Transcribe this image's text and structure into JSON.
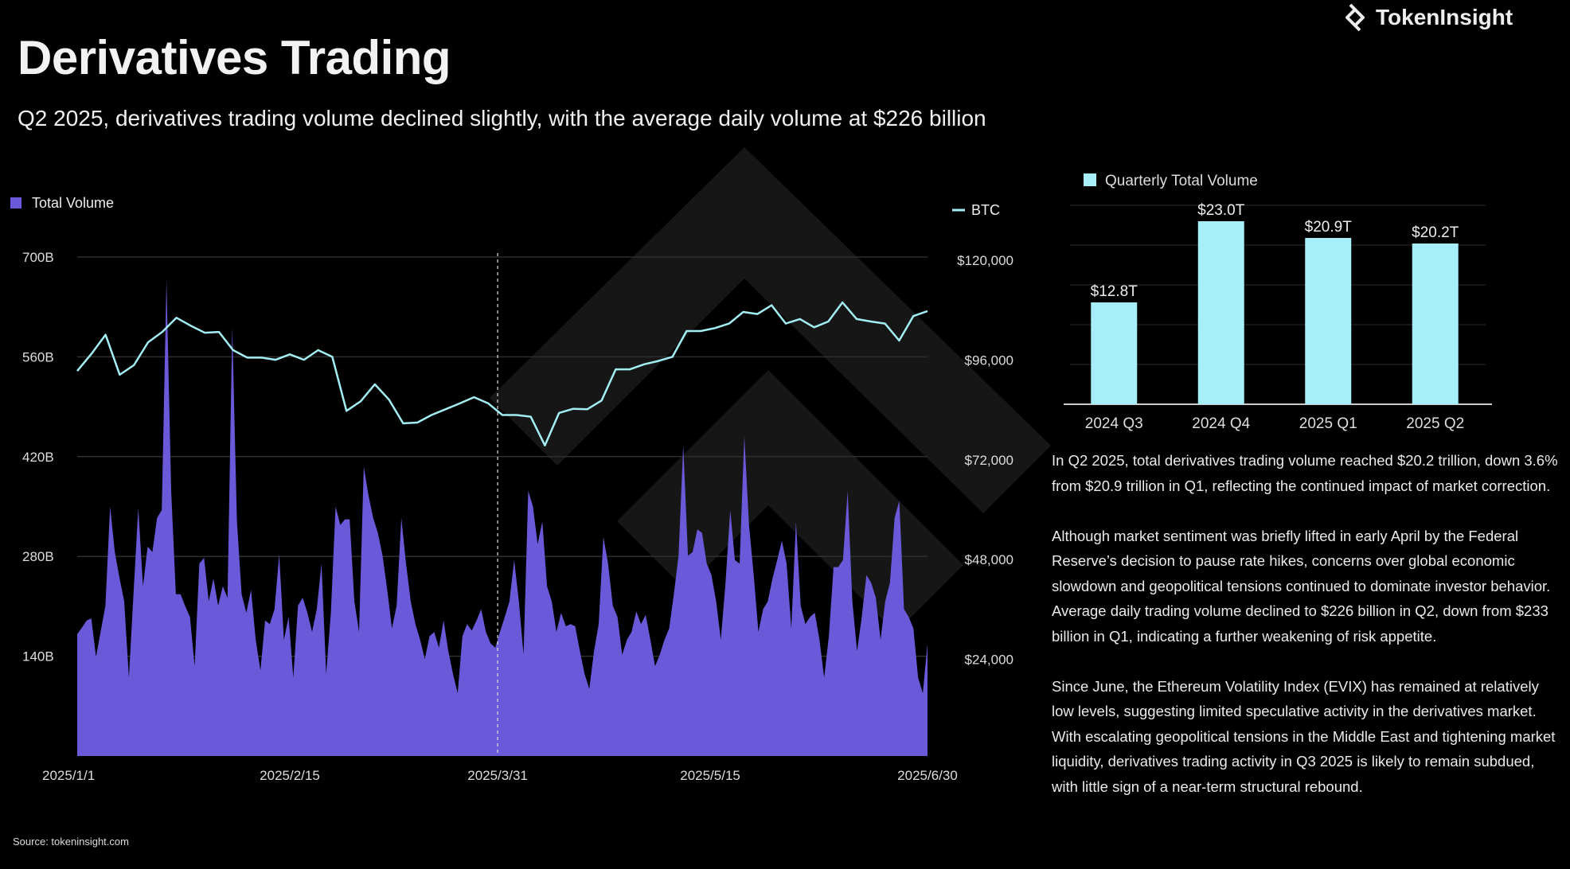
{
  "header": {
    "title": "Derivatives Trading",
    "subtitle": "Q2 2025, derivatives trading volume declined slightly, with the average daily volume at $226 billion",
    "logo_text": "TokenInsight"
  },
  "source": "Source: tokeninsight.com",
  "analysis": [
    "In Q2 2025, total derivatives trading volume reached $20.2 trillion, down 3.6% from $20.9 trillion in Q1, reflecting the continued impact of market correction.",
    "Although market sentiment was briefly lifted in early April by the Federal Reserve’s decision to pause rate hikes, concerns over global economic slowdown and geopolitical tensions continued to dominate investor behavior. Average daily trading volume declined to $226 billion in Q2, down from $233 billion in Q1, indicating a further weakening of risk appetite.",
    "Since June, the Ethereum Volatility Index (EVIX) has remained at relatively low levels, suggesting limited speculative activity in the derivatives market. With escalating geopolitical tensions in the Middle East and tightening market liquidity, derivatives trading activity in Q3 2025 is likely to remain subdued, with little sign of a near-term structural rebound."
  ],
  "chart_data": [
    {
      "type": "area+line",
      "x_range": [
        "2025/1/1",
        "2025/6/30"
      ],
      "x_ticks": [
        "2025/1/1",
        "2025/2/15",
        "2025/3/31",
        "2025/5/15",
        "2025/6/30"
      ],
      "marker_date": "2025/3/31",
      "y_left": {
        "ticks": [
          "140B",
          "280B",
          "420B",
          "560B",
          "700B"
        ],
        "ylim": [
          0,
          700
        ],
        "unit": "B"
      },
      "y_right": {
        "ticks": [
          "$24,000",
          "$48,000",
          "$72,000",
          "$96,000",
          "$120,000"
        ],
        "ylim": [
          0,
          120000
        ]
      },
      "grid": true,
      "series": [
        {
          "name": "Total Volume",
          "type": "area",
          "axis": "left",
          "color": "#6a5ad9",
          "frequency": "daily",
          "values": [
            171,
            180,
            190,
            193,
            139,
            175,
            211,
            350,
            286,
            250,
            217,
            110,
            230,
            348,
            238,
            294,
            286,
            334,
            345,
            668,
            372,
            227,
            227,
            210,
            195,
            126,
            270,
            278,
            217,
            249,
            211,
            238,
            222,
            602,
            329,
            227,
            201,
            233,
            163,
            120,
            190,
            185,
            206,
            283,
            163,
            195,
            110,
            211,
            222,
            201,
            174,
            206,
            270,
            115,
            201,
            350,
            324,
            332,
            332,
            217,
            174,
            406,
            366,
            334,
            313,
            281,
            233,
            179,
            211,
            334,
            270,
            217,
            185,
            163,
            136,
            168,
            174,
            152,
            190,
            147,
            115,
            88,
            168,
            185,
            176,
            190,
            206,
            174,
            158,
            152,
            174,
            195,
            217,
            275,
            217,
            142,
            372,
            350,
            297,
            329,
            238,
            217,
            174,
            201,
            182,
            185,
            182,
            147,
            115,
            94,
            147,
            185,
            307,
            270,
            211,
            195,
            142,
            163,
            174,
            203,
            185,
            198,
            163,
            126,
            142,
            163,
            179,
            227,
            281,
            436,
            281,
            286,
            318,
            313,
            270,
            254,
            217,
            163,
            243,
            345,
            275,
            270,
            449,
            324,
            254,
            174,
            206,
            217,
            249,
            275,
            302,
            270,
            179,
            329,
            211,
            185,
            195,
            201,
            163,
            110,
            168,
            265,
            265,
            275,
            372,
            217,
            147,
            195,
            254,
            243,
            222,
            163,
            217,
            243,
            334,
            358,
            206,
            195,
            179,
            110,
            88,
            158
          ]
        },
        {
          "name": "BTC",
          "type": "line",
          "axis": "right",
          "color": "#a3eef3",
          "frequency": "every 3 days",
          "values": [
            92600,
            96700,
            101300,
            91700,
            94000,
            99500,
            102000,
            105400,
            103500,
            101800,
            102000,
            97600,
            95800,
            95800,
            95300,
            96600,
            95300,
            97600,
            96000,
            83000,
            85300,
            89400,
            85700,
            80000,
            80200,
            82000,
            83400,
            84800,
            86300,
            84800,
            82000,
            82000,
            81600,
            74700,
            82500,
            83500,
            83400,
            85500,
            93000,
            93000,
            94200,
            95000,
            96000,
            102200,
            102200,
            102900,
            104000,
            106800,
            106300,
            108400,
            104000,
            105100,
            103100,
            104500,
            109100,
            105100,
            104500,
            104000,
            99900,
            105800,
            107000
          ]
        }
      ]
    },
    {
      "type": "bar",
      "legend": "Quarterly Total Volume",
      "categories": [
        "2024 Q3",
        "2024 Q4",
        "2025 Q1",
        "2025 Q2"
      ],
      "values": [
        12.8,
        23.0,
        20.9,
        20.2
      ],
      "data_labels": [
        "$12.8T",
        "$23.0T",
        "$20.9T",
        "$20.2T"
      ],
      "ylim": [
        0,
        25
      ],
      "grid": true,
      "color": "#a6eef8"
    }
  ]
}
